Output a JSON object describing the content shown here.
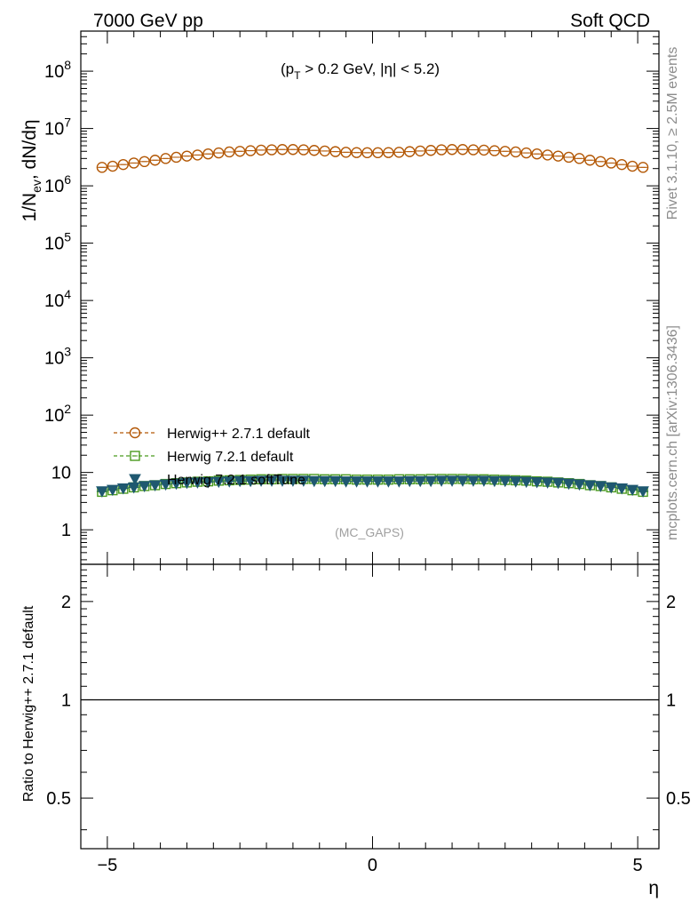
{
  "header": {
    "left": "7000 GeV pp",
    "right": "Soft QCD"
  },
  "side_labels": {
    "rivet": "Rivet 3.1.10, ≥ 2.5M events",
    "mcplots": "mcplots.cern.ch [arXiv:1306.3436]"
  },
  "chart_data": [
    {
      "type": "scatter",
      "panel": "main",
      "title": "(p_T > 0.2 GeV, |η| < 5.2)",
      "title_parts": {
        "open": "(p",
        "sub": "T",
        "rest": " > 0.2 GeV, |η| < 5.2)"
      },
      "ylabel": "1/N_ev, dN/dη",
      "ylabel_parts": {
        "a": "1/N",
        "sub": "ev",
        "b": ", dN/dη"
      },
      "yscale": "log",
      "ylim": [
        0.25,
        500000000
      ],
      "xlim": [
        -5.5,
        5.4
      ],
      "yticks": [
        {
          "value": 1,
          "label": "1"
        },
        {
          "value": 10,
          "label": "10"
        },
        {
          "value": 100,
          "base": "10",
          "exp": "2"
        },
        {
          "value": 1000,
          "base": "10",
          "exp": "3"
        },
        {
          "value": 10000,
          "base": "10",
          "exp": "4"
        },
        {
          "value": 100000,
          "base": "10",
          "exp": "5"
        },
        {
          "value": 1000000,
          "base": "10",
          "exp": "6"
        },
        {
          "value": 10000000,
          "base": "10",
          "exp": "7"
        },
        {
          "value": 100000000,
          "base": "10",
          "exp": "8"
        }
      ],
      "watermark": "(MC_GAPS)",
      "legend_position": "lower-left",
      "x": [
        -5.1,
        -4.9,
        -4.7,
        -4.5,
        -4.3,
        -4.1,
        -3.9,
        -3.7,
        -3.5,
        -3.3,
        -3.1,
        -2.9,
        -2.7,
        -2.5,
        -2.3,
        -2.1,
        -1.9,
        -1.7,
        -1.5,
        -1.3,
        -1.1,
        -0.9,
        -0.7,
        -0.5,
        -0.3,
        -0.1,
        0.1,
        0.3,
        0.5,
        0.7,
        0.9,
        1.1,
        1.3,
        1.5,
        1.7,
        1.9,
        2.1,
        2.3,
        2.5,
        2.7,
        2.9,
        3.1,
        3.3,
        3.5,
        3.7,
        3.9,
        4.1,
        4.3,
        4.5,
        4.7,
        4.9,
        5.1
      ],
      "series": [
        {
          "name": "Herwig++ 2.7.1 default",
          "color": "#b35806",
          "marker": "circle",
          "values": [
            2100000,
            2200000,
            2350000,
            2500000,
            2650000,
            2800000,
            3000000,
            3150000,
            3300000,
            3450000,
            3600000,
            3750000,
            3900000,
            4000000,
            4100000,
            4200000,
            4250000,
            4300000,
            4300000,
            4250000,
            4150000,
            4050000,
            3950000,
            3850000,
            3800000,
            3780000,
            3780000,
            3800000,
            3850000,
            3950000,
            4050000,
            4150000,
            4250000,
            4300000,
            4300000,
            4250000,
            4200000,
            4100000,
            4000000,
            3900000,
            3750000,
            3600000,
            3450000,
            3300000,
            3150000,
            3000000,
            2800000,
            2650000,
            2500000,
            2350000,
            2200000,
            2100000
          ]
        },
        {
          "name": "Herwig 7.2.1 default",
          "color": "#4a9a1f",
          "marker": "square",
          "values": [
            4.6,
            4.9,
            5.2,
            5.5,
            5.8,
            6.0,
            6.3,
            6.5,
            6.7,
            6.9,
            7.0,
            7.2,
            7.3,
            7.4,
            7.5,
            7.6,
            7.6,
            7.7,
            7.7,
            7.7,
            7.7,
            7.6,
            7.6,
            7.6,
            7.5,
            7.5,
            7.5,
            7.5,
            7.6,
            7.6,
            7.6,
            7.7,
            7.7,
            7.7,
            7.7,
            7.6,
            7.6,
            7.5,
            7.4,
            7.3,
            7.2,
            7.0,
            6.9,
            6.7,
            6.5,
            6.3,
            6.0,
            5.8,
            5.5,
            5.2,
            4.9,
            4.6
          ]
        },
        {
          "name": "Herwig 7.2.1 softTune",
          "color": "#1f5870",
          "marker": "triangle-down",
          "values": [
            4.7,
            5.0,
            5.3,
            5.5,
            5.8,
            6.0,
            6.2,
            6.4,
            6.6,
            6.7,
            6.8,
            6.9,
            7.0,
            7.1,
            7.1,
            7.2,
            7.2,
            7.2,
            7.2,
            7.2,
            7.1,
            7.1,
            7.1,
            7.0,
            7.0,
            7.0,
            7.0,
            7.0,
            7.0,
            7.1,
            7.1,
            7.1,
            7.2,
            7.2,
            7.2,
            7.2,
            7.2,
            7.1,
            7.1,
            7.0,
            6.9,
            6.8,
            6.7,
            6.6,
            6.4,
            6.2,
            6.0,
            5.8,
            5.5,
            5.3,
            5.0,
            4.7
          ]
        }
      ]
    },
    {
      "type": "line",
      "panel": "ratio",
      "ylabel": "Ratio to Herwig++ 2.7.1 default",
      "xlabel": "η",
      "yscale": "log",
      "ylim": [
        0.35,
        2.6
      ],
      "xlim": [
        -5.5,
        5.4
      ],
      "yticks": [
        {
          "value": 0.5,
          "label": "0.5"
        },
        {
          "value": 1,
          "label": "1"
        },
        {
          "value": 2,
          "label": "2"
        }
      ],
      "xticks": [
        {
          "value": -5,
          "label": "−5"
        },
        {
          "value": 0,
          "label": "0"
        },
        {
          "value": 5,
          "label": "5"
        }
      ],
      "reference_line": 1
    }
  ]
}
